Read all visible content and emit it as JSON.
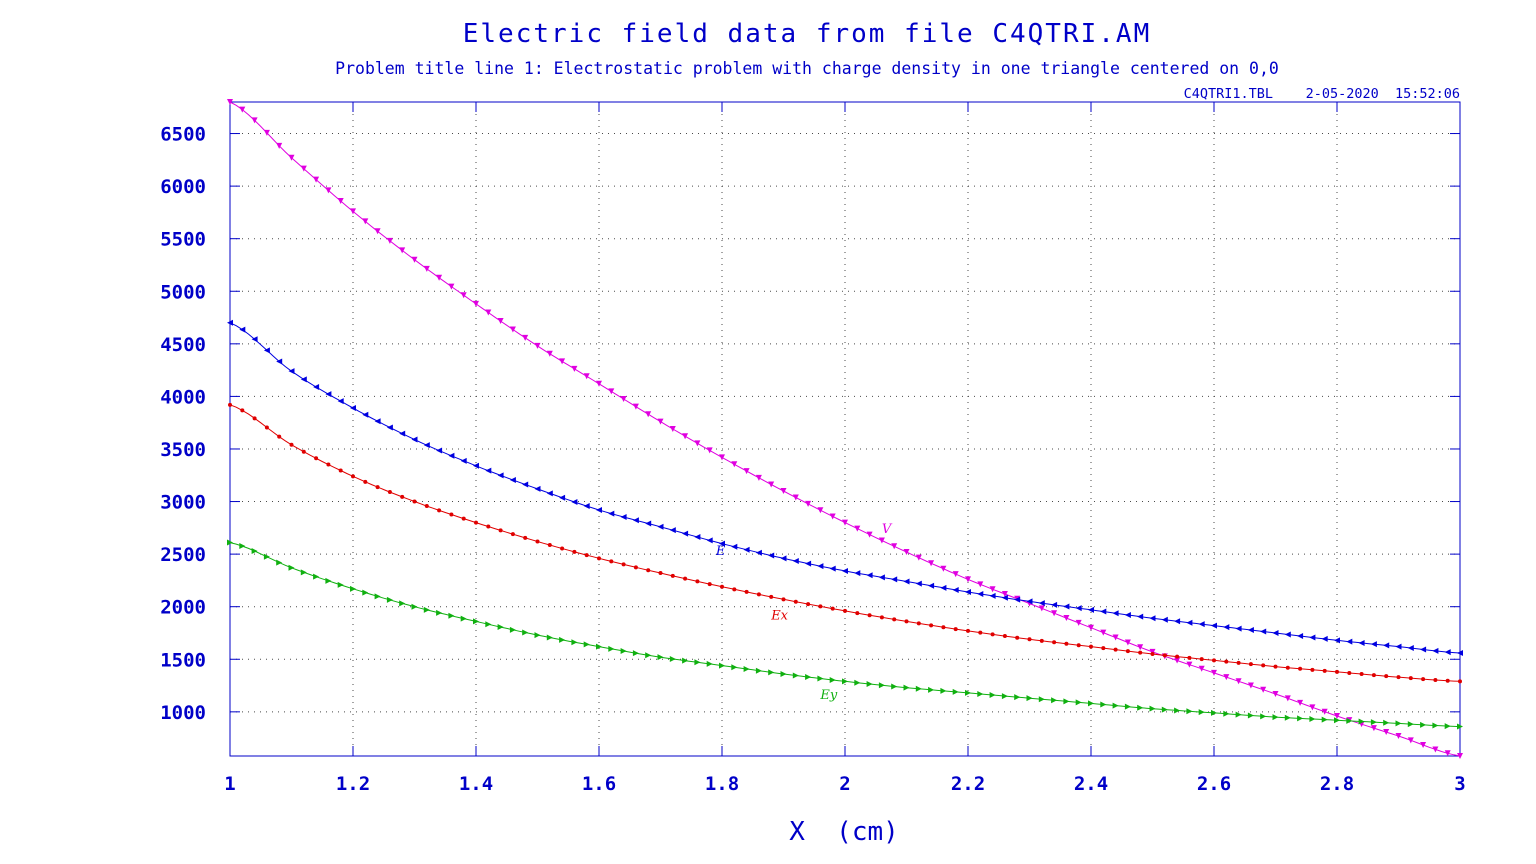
{
  "header": {
    "title": "Electric field data from file C4QTRI.AM",
    "subtitle": "Problem title line 1: Electrostatic problem with charge density in one triangle centered on 0,0",
    "file_info": "C4QTRI1.TBL    2-05-2020  15:52:06"
  },
  "chart_data": {
    "type": "line",
    "title": "Electric field data from file C4QTRI.AM",
    "subtitle": "Problem title line 1: Electrostatic problem with charge density in one triangle centered on 0,0",
    "xlabel": "X  (cm)",
    "ylabel": "",
    "xlim": [
      1,
      3
    ],
    "ylim": [
      580,
      6800
    ],
    "xticks": [
      1,
      1.2,
      1.4,
      1.6,
      1.8,
      2,
      2.2,
      2.4,
      2.6,
      2.8,
      3
    ],
    "xtick_labels": [
      "1",
      "1.2",
      "1.4",
      "1.6",
      "1.8",
      "2",
      "2.2",
      "2.4",
      "2.6",
      "2.8",
      "3"
    ],
    "yticks": [
      1000,
      1500,
      2000,
      2500,
      3000,
      3500,
      4000,
      4500,
      5000,
      5500,
      6000,
      6500
    ],
    "ytick_labels": [
      "1000",
      "1500",
      "2000",
      "2500",
      "3000",
      "3500",
      "4000",
      "4500",
      "5000",
      "5500",
      "6000",
      "6500"
    ],
    "grid": true,
    "x": [
      1,
      1.1,
      1.2,
      1.3,
      1.4,
      1.5,
      1.6,
      1.7,
      1.8,
      1.9,
      2,
      2.1,
      2.2,
      2.3,
      2.4,
      2.5,
      2.6,
      2.7,
      2.8,
      2.9,
      3
    ],
    "series": [
      {
        "name": "V",
        "color": "#e000e0",
        "marker": "triangle-down",
        "label_at": [
          2.06,
          2700
        ],
        "values": [
          6800,
          6270,
          5760,
          5300,
          4880,
          4480,
          4120,
          3760,
          3420,
          3100,
          2800,
          2520,
          2260,
          2030,
          1800,
          1570,
          1370,
          1170,
          960,
          770,
          580
        ]
      },
      {
        "name": "E",
        "color": "#0000e0",
        "marker": "triangle-left",
        "label_at": [
          1.79,
          2490
        ],
        "values": [
          4700,
          4240,
          3890,
          3590,
          3340,
          3120,
          2920,
          2760,
          2600,
          2460,
          2340,
          2240,
          2140,
          2050,
          1970,
          1890,
          1820,
          1750,
          1680,
          1620,
          1560
        ]
      },
      {
        "name": "Ex",
        "color": "#e00000",
        "marker": "dot",
        "label_at": [
          1.88,
          1880
        ],
        "values": [
          3920,
          3540,
          3240,
          3000,
          2800,
          2620,
          2460,
          2320,
          2190,
          2070,
          1960,
          1860,
          1770,
          1690,
          1620,
          1550,
          1490,
          1430,
          1380,
          1330,
          1290
        ]
      },
      {
        "name": "Ey",
        "color": "#10b010",
        "marker": "triangle-right",
        "label_at": [
          1.96,
          1120
        ],
        "values": [
          2610,
          2370,
          2170,
          2000,
          1860,
          1730,
          1620,
          1520,
          1440,
          1360,
          1290,
          1230,
          1180,
          1130,
          1080,
          1030,
          990,
          950,
          920,
          890,
          860
        ]
      }
    ]
  }
}
